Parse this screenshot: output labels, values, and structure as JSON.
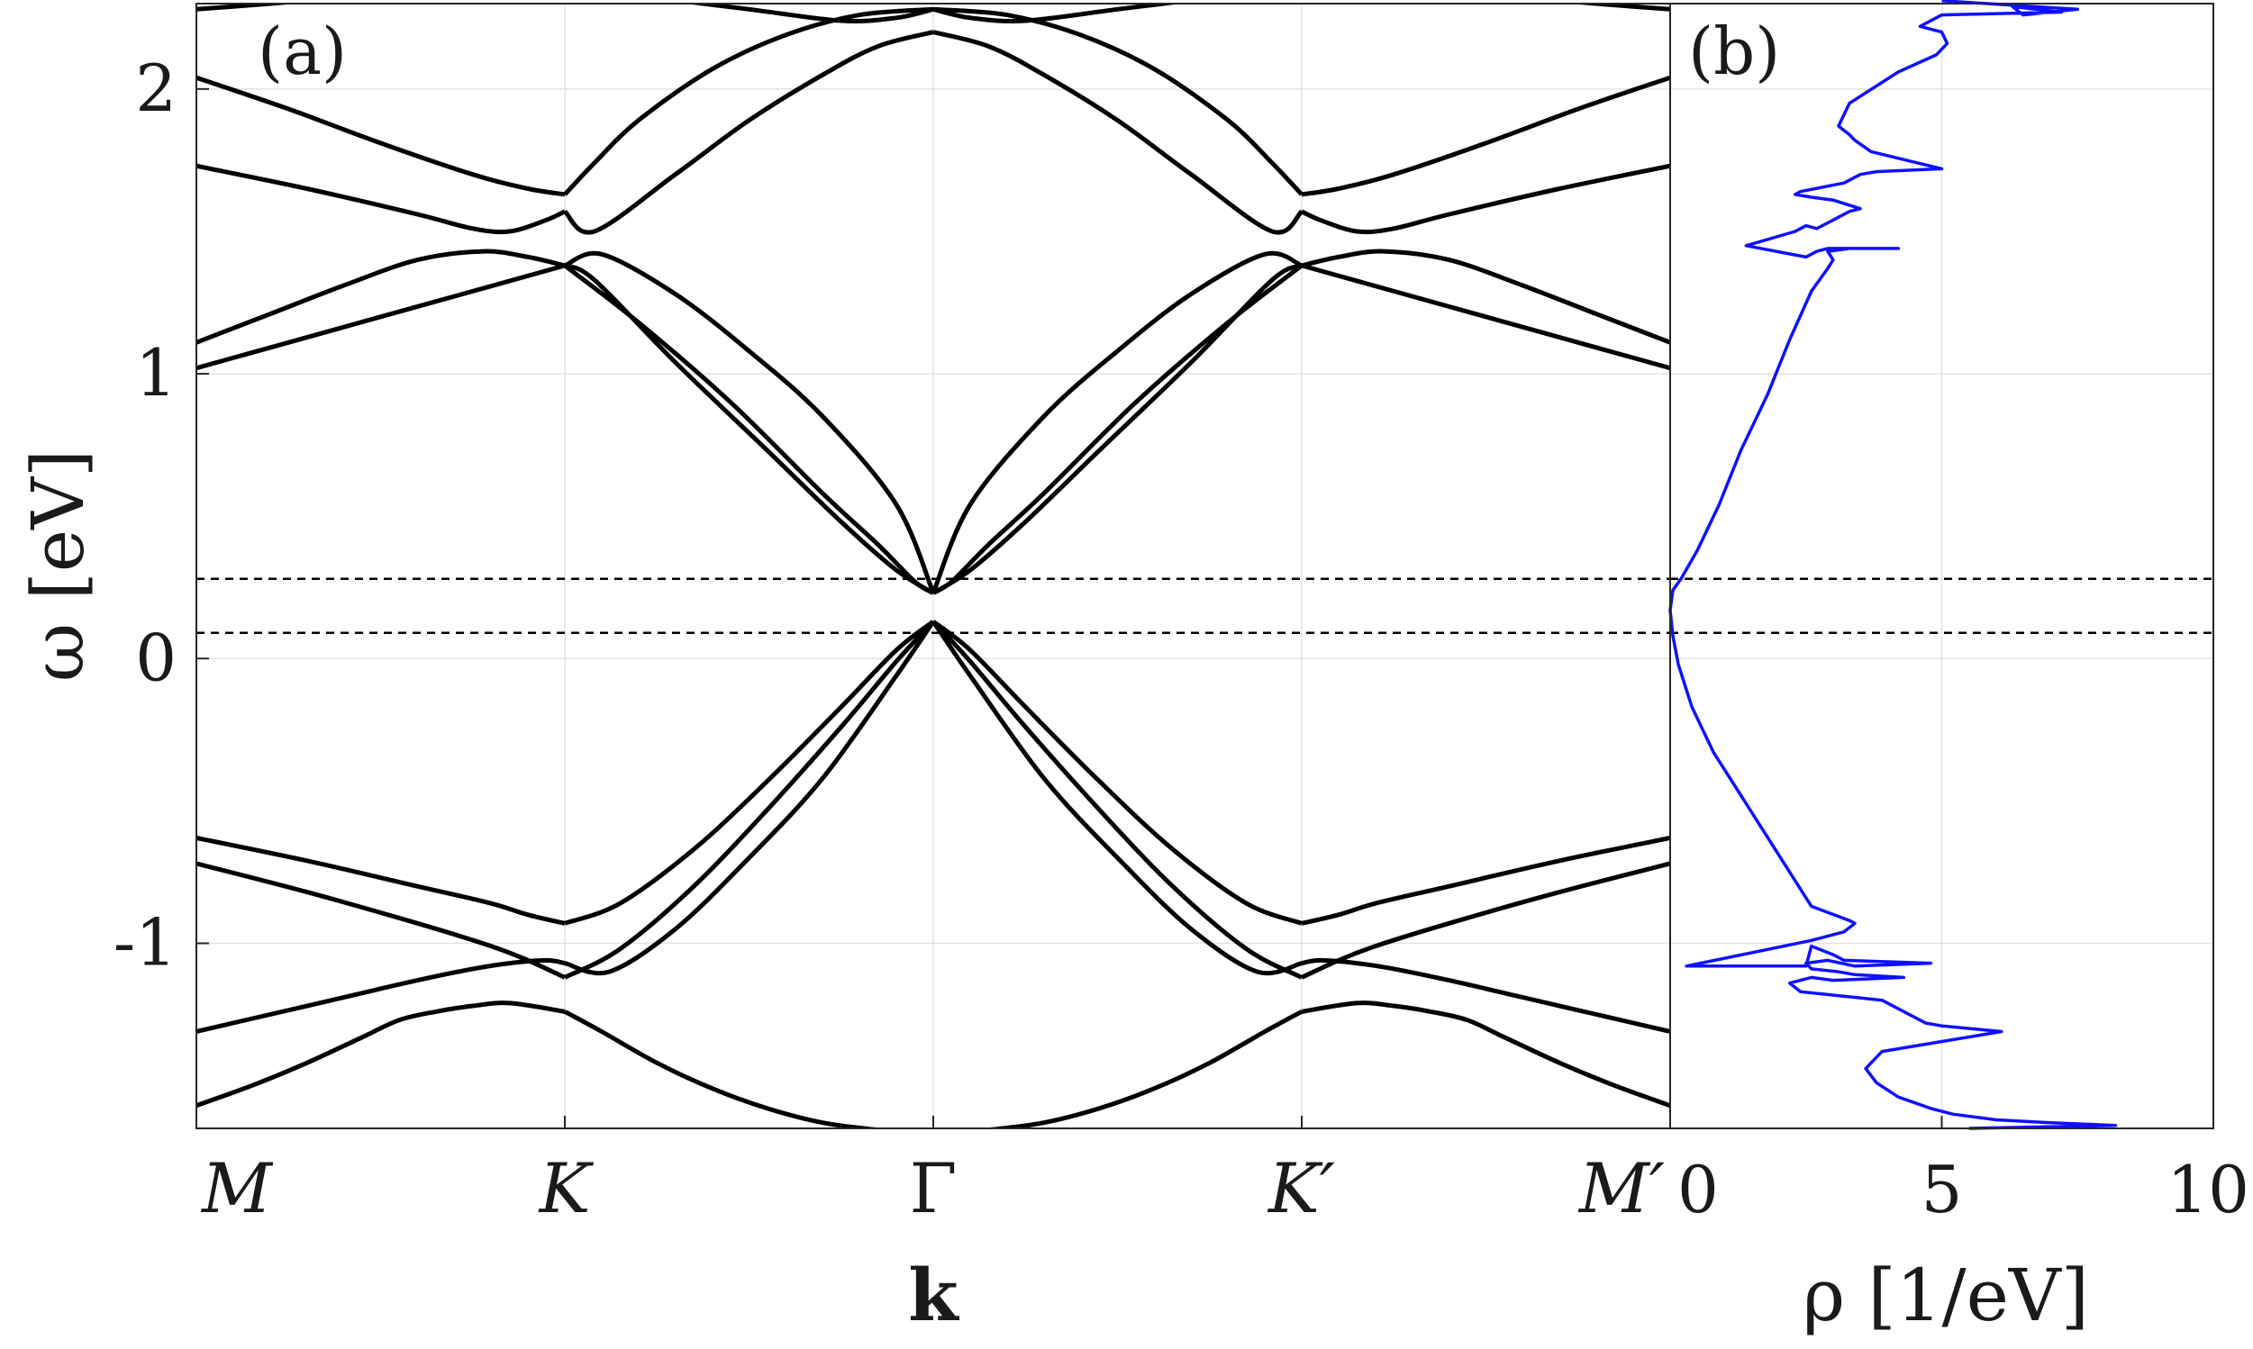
{
  "chart_data": [
    {
      "type": "line",
      "panel_label": "(a)",
      "xlabel": "k",
      "ylabel": "ω [eV]",
      "ylim": [
        -1.65,
        2.3
      ],
      "yticks": [
        {
          "v": 2,
          "label": "2"
        },
        {
          "v": 1,
          "label": "1"
        },
        {
          "v": 0,
          "label": "0"
        },
        {
          "v": -1,
          "label": "-1"
        }
      ],
      "xticks": [
        "M",
        "K",
        "Γ",
        "K′",
        "M′"
      ],
      "grid": true,
      "reference_lines": [
        0.28,
        0.09
      ],
      "line_color": "#000000",
      "series": [
        {
          "x": [
            0,
            0.15,
            0.3,
            0.45,
            0.55,
            0.65,
            0.75,
            0.85,
            1.0
          ],
          "y": [
            -1.57,
            -1.5,
            -1.42,
            -1.33,
            -1.27,
            -1.24,
            -1.22,
            -1.21,
            -1.24
          ]
        },
        {
          "x": [
            0,
            0.2,
            0.4,
            0.6,
            0.75,
            0.85,
            0.95,
            1.0
          ],
          "y": [
            -1.31,
            -1.25,
            -1.19,
            -1.13,
            -1.09,
            -1.07,
            -1.06,
            -1.07
          ]
        },
        {
          "x": [
            0,
            0.3,
            0.6,
            0.8,
            0.9,
            1.0
          ],
          "y": [
            -0.72,
            -0.82,
            -0.93,
            -1.01,
            -1.06,
            -1.12
          ]
        },
        {
          "x": [
            0,
            0.3,
            0.6,
            0.8,
            0.9,
            1.0
          ],
          "y": [
            -0.63,
            -0.71,
            -0.8,
            -0.86,
            -0.9,
            -0.93
          ]
        },
        {
          "x": [
            1.0,
            1.1,
            1.25,
            1.4,
            1.55,
            1.7,
            1.85,
            1.95,
            2.0
          ],
          "y": [
            -1.24,
            -1.31,
            -1.42,
            -1.51,
            -1.58,
            -1.63,
            -1.655,
            -1.66,
            -1.66
          ]
        },
        {
          "x": [
            1.0,
            1.15,
            1.35,
            1.55,
            1.75,
            1.9,
            2.0
          ],
          "y": [
            -1.12,
            -1.02,
            -0.8,
            -0.53,
            -0.24,
            -0.01,
            0.13
          ]
        },
        {
          "x": [
            1.0,
            1.15,
            1.35,
            1.55,
            1.75,
            1.9,
            2.0
          ],
          "y": [
            -0.93,
            -0.86,
            -0.67,
            -0.43,
            -0.17,
            0.03,
            0.13
          ]
        },
        {
          "x": [
            1.0,
            1.12,
            1.3,
            1.5,
            1.7,
            1.9,
            2.0
          ],
          "y": [
            -1.07,
            -1.1,
            -0.95,
            -0.7,
            -0.42,
            -0.06,
            0.13
          ]
        },
        {
          "x": [
            1.0,
            1.2,
            1.45,
            1.7,
            1.85,
            1.95,
            2.0
          ],
          "y": [
            1.38,
            1.18,
            0.9,
            0.58,
            0.4,
            0.27,
            0.23
          ]
        },
        {
          "x": [
            1.0,
            1.08,
            1.3,
            1.55,
            1.75,
            1.9,
            2.0
          ],
          "y": [
            1.38,
            1.33,
            1.04,
            0.73,
            0.48,
            0.31,
            0.23
          ]
        },
        {
          "x": [
            1.0,
            1.08,
            1.2,
            1.4,
            1.6,
            1.8,
            2.0
          ],
          "y": [
            1.63,
            1.74,
            1.89,
            2.07,
            2.19,
            2.26,
            2.28
          ]
        },
        {
          "x": [
            1.0,
            1.08,
            1.3,
            1.5,
            1.7,
            1.85,
            2.0
          ],
          "y": [
            1.57,
            1.5,
            1.7,
            1.89,
            2.05,
            2.15,
            2.2
          ]
        },
        {
          "x": [
            1.0,
            1.1,
            1.3,
            1.5,
            1.7,
            1.9,
            2.0
          ],
          "y": [
            1.38,
            1.42,
            1.28,
            1.08,
            0.85,
            0.54,
            0.23
          ]
        },
        {
          "x": [
            0,
            0.2,
            0.4,
            0.6,
            0.78,
            0.9,
            1.0
          ],
          "y": [
            1.11,
            1.21,
            1.31,
            1.4,
            1.43,
            1.41,
            1.38
          ]
        },
        {
          "x": [
            0,
            0.25,
            0.5,
            0.75,
            1.0
          ],
          "y": [
            1.02,
            1.11,
            1.2,
            1.29,
            1.38
          ]
        },
        {
          "x": [
            0,
            0.3,
            0.6,
            0.75,
            0.85,
            0.95,
            1.0
          ],
          "y": [
            1.73,
            1.65,
            1.56,
            1.51,
            1.5,
            1.54,
            1.57
          ]
        },
        {
          "x": [
            0,
            0.25,
            0.5,
            0.75,
            0.9,
            1.0
          ],
          "y": [
            2.04,
            1.93,
            1.81,
            1.7,
            1.65,
            1.63
          ]
        },
        {
          "x": [
            0,
            0.1,
            0.3
          ],
          "y": [
            2.28,
            2.29,
            2.31
          ]
        },
        {
          "x": [
            1.25,
            1.5,
            1.75,
            1.9,
            2.0
          ],
          "y": [
            2.32,
            2.28,
            2.24,
            2.25,
            2.28
          ]
        }
      ],
      "mirror_about": 2.0
    },
    {
      "type": "line",
      "panel_label": "(b)",
      "xlabel": "ρ [1/eV]",
      "xlim": [
        0,
        10
      ],
      "xticks": [
        0,
        5,
        10
      ],
      "ylim": [
        -1.65,
        2.3
      ],
      "grid": true,
      "reference_lines": [
        0.28,
        0.09
      ],
      "line_color": "#1010ff",
      "series": [
        {
          "x": [
            5.5,
            8.2,
            7.0,
            6.0,
            5.2,
            4.8,
            4.2,
            3.8,
            3.6,
            3.9,
            6.1,
            5.0,
            4.7,
            4.6,
            3.9,
            3.4,
            2.9,
            2.4,
            2.2,
            2.6,
            3.0,
            4.3,
            3.4,
            3.1,
            2.6,
            2.5,
            2.9,
            3.4,
            4.8,
            3.2,
            3.0,
            2.6,
            2.5,
            0.3,
            2.6,
            3.2,
            3.4,
            3.3,
            2.6,
            1.9,
            1.3,
            0.8,
            0.4,
            0.15,
            0.05,
            0.0,
            0.05,
            0.2,
            0.5,
            0.9,
            1.3,
            1.8,
            2.2,
            2.6,
            2.9,
            3.0,
            2.9,
            3.3,
            4.2,
            2.9,
            2.7,
            2.5,
            1.4,
            2.3,
            2.5,
            2.7,
            3.1,
            3.3,
            3.5,
            3.0,
            2.6,
            2.3,
            2.4,
            3.2,
            3.5,
            3.8,
            5.0,
            3.7,
            3.4,
            3.3,
            3.1,
            3.3,
            4.2,
            4.9,
            5.1,
            5.0,
            4.6,
            5.0,
            7.2,
            6.3,
            6.5,
            7.5,
            5.0
          ],
          "y": [
            -1.65,
            -1.64,
            -1.63,
            -1.62,
            -1.6,
            -1.58,
            -1.54,
            -1.49,
            -1.44,
            -1.38,
            -1.31,
            -1.29,
            -1.28,
            -1.27,
            -1.2,
            -1.19,
            -1.18,
            -1.17,
            -1.14,
            -1.12,
            -1.13,
            -1.12,
            -1.11,
            -1.1,
            -1.09,
            -1.07,
            -1.06,
            -1.08,
            -1.07,
            -1.06,
            -1.04,
            -1.01,
            -1.08,
            -1.08,
            -0.99,
            -0.96,
            -0.93,
            -0.92,
            -0.87,
            -0.66,
            -0.48,
            -0.33,
            -0.17,
            -0.02,
            0.08,
            0.17,
            0.24,
            0.28,
            0.38,
            0.54,
            0.73,
            0.93,
            1.12,
            1.29,
            1.37,
            1.4,
            1.43,
            1.44,
            1.44,
            1.44,
            1.43,
            1.41,
            1.45,
            1.5,
            1.52,
            1.51,
            1.55,
            1.57,
            1.58,
            1.61,
            1.62,
            1.63,
            1.64,
            1.67,
            1.7,
            1.71,
            1.72,
            1.78,
            1.82,
            1.84,
            1.87,
            1.95,
            2.06,
            2.12,
            2.16,
            2.2,
            2.22,
            2.26,
            2.27,
            2.29,
            2.26,
            2.28,
            2.31
          ]
        }
      ]
    }
  ]
}
